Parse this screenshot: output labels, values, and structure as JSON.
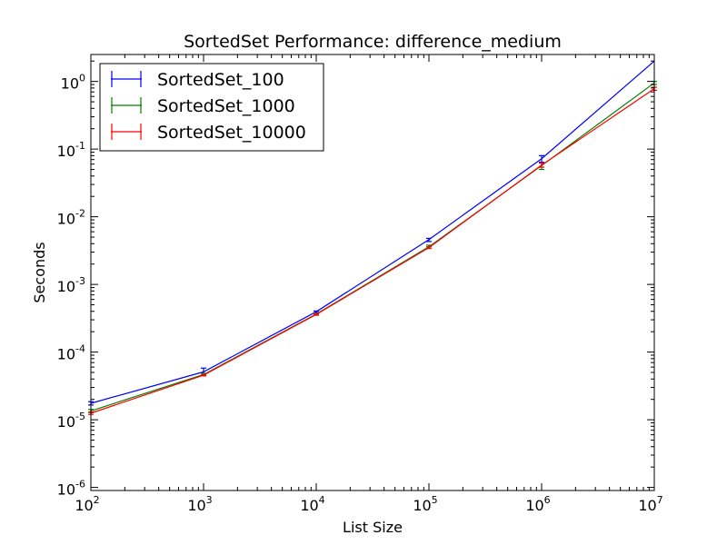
{
  "chart_data": {
    "type": "line",
    "title": "SortedSet Performance: difference_medium",
    "xlabel": "List Size",
    "ylabel": "Seconds",
    "xscale": "log",
    "yscale": "log",
    "xlim": [
      100,
      10000000
    ],
    "ylim": [
      9e-07,
      2.5
    ],
    "grid": false,
    "legend_position": "top-left",
    "x_ticks": [
      {
        "base": "10",
        "exp": "2",
        "value": 100
      },
      {
        "base": "10",
        "exp": "3",
        "value": 1000
      },
      {
        "base": "10",
        "exp": "4",
        "value": 10000
      },
      {
        "base": "10",
        "exp": "5",
        "value": 100000
      },
      {
        "base": "10",
        "exp": "6",
        "value": 1000000
      },
      {
        "base": "10",
        "exp": "7",
        "value": 10000000
      }
    ],
    "y_ticks": [
      {
        "base": "10",
        "exp": "-6",
        "value": 1e-06
      },
      {
        "base": "10",
        "exp": "-5",
        "value": 1e-05
      },
      {
        "base": "10",
        "exp": "-4",
        "value": 0.0001
      },
      {
        "base": "10",
        "exp": "-3",
        "value": 0.001
      },
      {
        "base": "10",
        "exp": "-2",
        "value": 0.01
      },
      {
        "base": "10",
        "exp": "-1",
        "value": 0.1
      },
      {
        "base": "10",
        "exp": "0",
        "value": 1
      }
    ],
    "x": [
      100,
      1000,
      10000,
      100000,
      1000000,
      10000000
    ],
    "series": [
      {
        "name": "SortedSet_100",
        "color": "#0000ff",
        "values": [
          1.75e-05,
          5.1e-05,
          0.000395,
          0.0046,
          0.072,
          2.0
        ],
        "err_low": [
          1.65e-05,
          4.5e-05,
          0.000385,
          0.0043,
          0.064,
          2.0
        ],
        "err_high": [
          1.85e-05,
          5.8e-05,
          0.000405,
          0.0048,
          0.08,
          2.0
        ]
      },
      {
        "name": "SortedSet_1000",
        "color": "#008000",
        "values": [
          1.35e-05,
          4.65e-05,
          0.000365,
          0.0036,
          0.057,
          0.95
        ],
        "err_low": [
          1.28e-05,
          4.45e-05,
          0.000355,
          0.0034,
          0.05,
          0.9
        ],
        "err_high": [
          1.42e-05,
          4.85e-05,
          0.000375,
          0.0038,
          0.062,
          1.0
        ]
      },
      {
        "name": "SortedSet_10000",
        "color": "#ff0000",
        "values": [
          1.25e-05,
          4.55e-05,
          0.00036,
          0.0035,
          0.058,
          0.78
        ],
        "err_low": [
          1.2e-05,
          4.45e-05,
          0.00035,
          0.0034,
          0.054,
          0.74
        ],
        "err_high": [
          1.3e-05,
          4.65e-05,
          0.00037,
          0.0036,
          0.062,
          0.82
        ]
      }
    ]
  }
}
